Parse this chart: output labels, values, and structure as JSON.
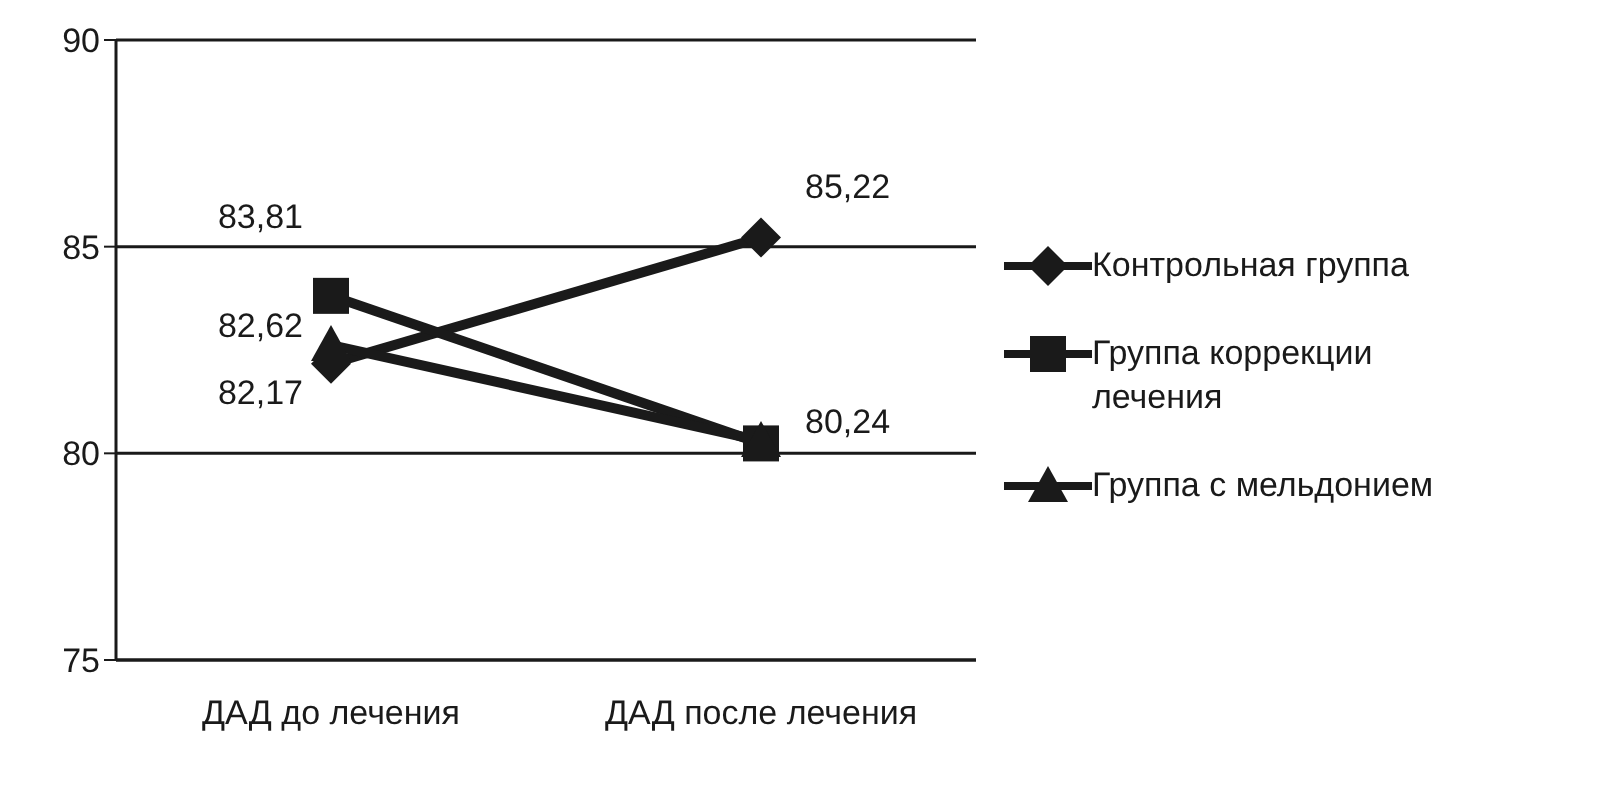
{
  "chart_data": {
    "type": "line",
    "categories": [
      "ДАД до лечения",
      "ДАД после лечения"
    ],
    "series": [
      {
        "name": "Контрольная группа",
        "color": "#1a1a1a",
        "marker": "diamond",
        "values": [
          82.17,
          85.22
        ],
        "value_labels": [
          "82,17",
          "85,22"
        ]
      },
      {
        "name": "Группа коррекции лечения",
        "color": "#1a1a1a",
        "marker": "square",
        "values": [
          83.81,
          80.24
        ],
        "value_labels": [
          "83,81",
          "80,24"
        ]
      },
      {
        "name": "Группа с мельдонием",
        "color": "#1a1a1a",
        "marker": "triangle",
        "values": [
          82.62,
          80.3
        ],
        "value_labels": [
          "82,62",
          null
        ]
      }
    ],
    "ylim": [
      75,
      90
    ],
    "yticks": [
      75,
      80,
      85,
      90
    ],
    "grid": "y",
    "legend": "right"
  }
}
